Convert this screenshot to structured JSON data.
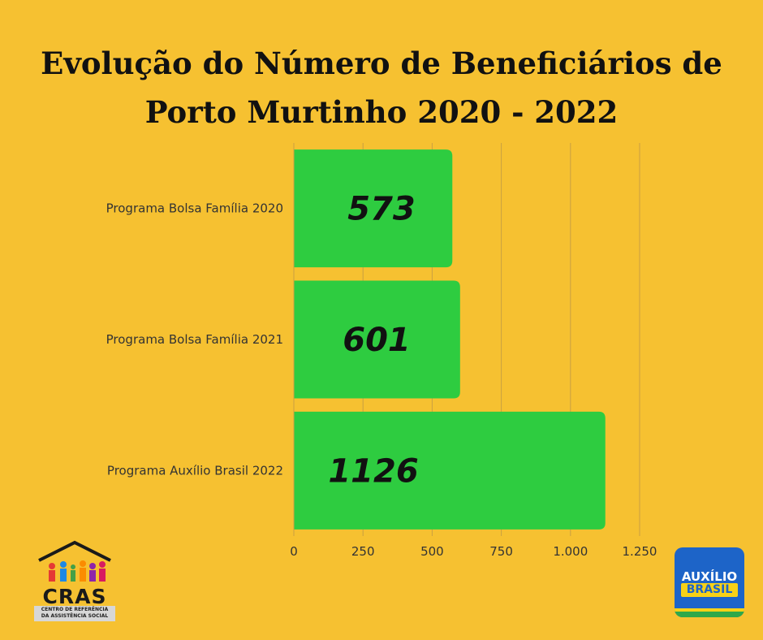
{
  "title_line1": "Evolução do Número de Beneficiários de",
  "title_line2": "Porto Murtinho 2020 - 2022",
  "colors": {
    "background": "#f6c131",
    "bar": "#2ecc40",
    "grid": "#c9a043"
  },
  "chart_data": {
    "type": "bar",
    "orientation": "horizontal",
    "categories": [
      "Programa Bolsa Família 2020",
      "Programa Bolsa Família 2021",
      "Programa Auxílio Brasil 2022"
    ],
    "values": [
      573,
      601,
      1126
    ],
    "value_labels": [
      "573",
      "601",
      "1126"
    ],
    "xlim": [
      0,
      1250
    ],
    "xticks": [
      0,
      250,
      500,
      750,
      1000,
      1250
    ],
    "xtick_labels": [
      "0",
      "250",
      "500",
      "750",
      "1.000",
      "1.250"
    ],
    "grid": true
  },
  "logos": {
    "cras_word": "CRAS",
    "cras_subtitle_line1": "CENTRO DE REFERÊNCIA",
    "cras_subtitle_line2": "DA ASSISTÊNCIA SOCIAL",
    "auxilio_line1": "AUXÍLIO",
    "auxilio_line2": "BRASIL"
  }
}
